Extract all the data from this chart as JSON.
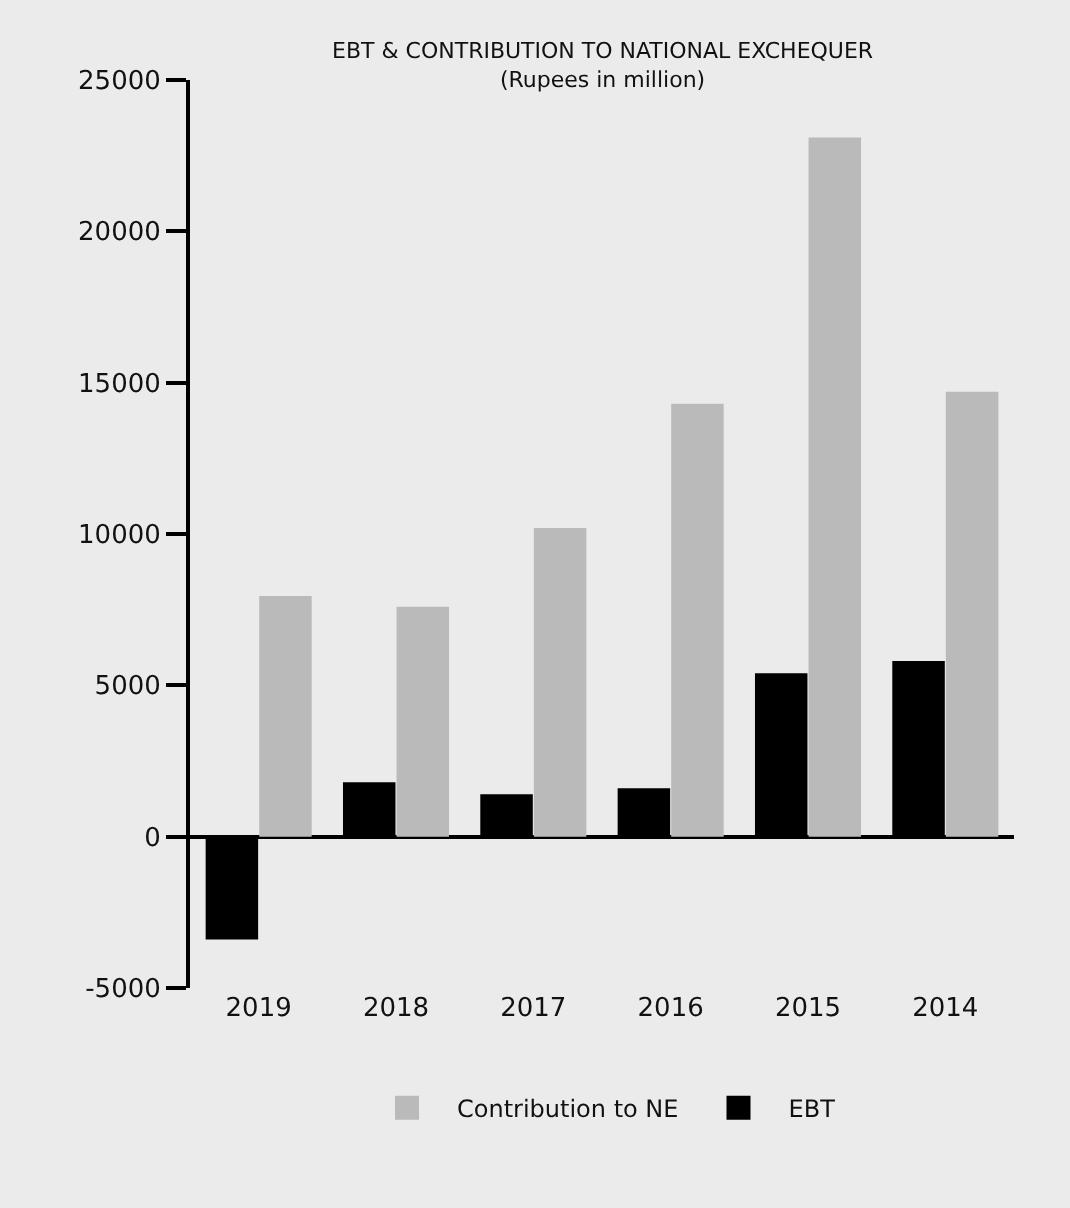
{
  "chart_data": {
    "type": "bar",
    "title": "EBT & CONTRIBUTION TO NATIONAL EXCHEQUER",
    "subtitle": "(Rupees in million)",
    "categories": [
      "2019",
      "2018",
      "2017",
      "2016",
      "2015",
      "2014"
    ],
    "series": [
      {
        "name": "EBT",
        "color": "#000000",
        "values": [
          -3400,
          1800,
          1400,
          1600,
          5400,
          5800
        ]
      },
      {
        "name": "Contribution to NE",
        "color": "#bababa",
        "values": [
          7950,
          7600,
          10200,
          14300,
          23100,
          14700
        ]
      }
    ],
    "ylim": [
      -5000,
      25000
    ],
    "yticks": [
      -5000,
      0,
      5000,
      10000,
      15000,
      20000,
      25000
    ],
    "legend": "bottom"
  }
}
